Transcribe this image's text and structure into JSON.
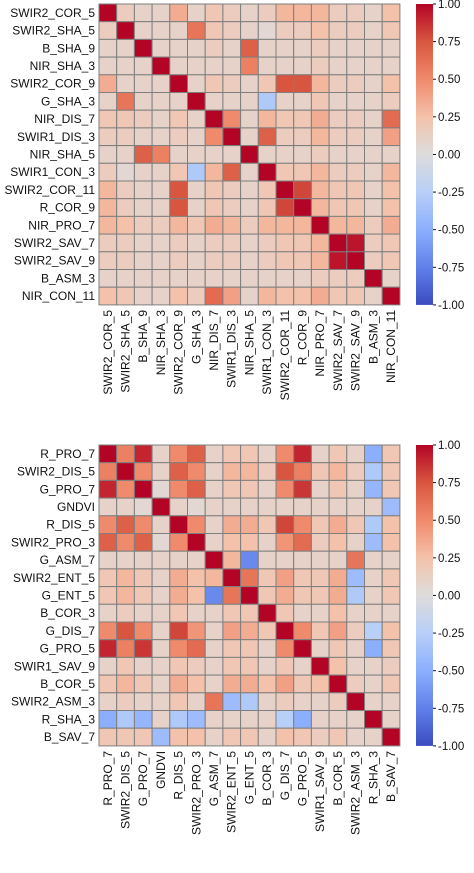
{
  "chart_data": [
    {
      "type": "heatmap",
      "title": "",
      "labels": [
        "SWIR2_COR_5",
        "SWIR2_SHA_5",
        "B_SHA_9",
        "NIR_SHA_3",
        "SWIR2_COR_9",
        "G_SHA_3",
        "NIR_DIS_7",
        "SWIR1_DIS_3",
        "NIR_SHA_5",
        "SWIR1_CON_3",
        "SWIR2_COR_11",
        "R_COR_9",
        "NIR_PRO_7",
        "SWIR2_SAV_7",
        "SWIR2_SAV_9",
        "B_ASM_3",
        "NIR_CON_11"
      ],
      "colorbar": {
        "min": -1.0,
        "max": 1.0,
        "ticks": [
          "1.00",
          "0.75",
          "0.50",
          "0.25",
          "0.00",
          "-0.25",
          "-0.50",
          "-0.75",
          "-1.00"
        ]
      },
      "matrix": [
        [
          1,
          0.15,
          0.1,
          0.1,
          0.35,
          0.1,
          0.2,
          0.15,
          0.1,
          0.15,
          0.3,
          0.3,
          0.3,
          0.15,
          0.15,
          0.1,
          0.25
        ],
        [
          0.15,
          1,
          0.1,
          0.1,
          0.1,
          0.6,
          0.2,
          0.15,
          0.1,
          0.05,
          0.15,
          0.15,
          0.25,
          0.15,
          0.15,
          0.1,
          0.2
        ],
        [
          0.1,
          0.1,
          1,
          0.1,
          0.1,
          0.1,
          0.15,
          0.1,
          0.7,
          0.1,
          0.1,
          0.1,
          0.15,
          0.1,
          0.1,
          0.1,
          0.1
        ],
        [
          0.1,
          0.1,
          0.1,
          1,
          0.1,
          0.1,
          0.1,
          0.1,
          0.55,
          0.1,
          0.1,
          0.1,
          0.15,
          0.1,
          0.1,
          0.1,
          0.1
        ],
        [
          0.35,
          0.1,
          0.1,
          0.1,
          1,
          0.1,
          0.2,
          0.15,
          0.1,
          0.2,
          0.75,
          0.75,
          0.3,
          0.15,
          0.15,
          0.1,
          0.25
        ],
        [
          0.1,
          0.6,
          0.1,
          0.1,
          0.1,
          1,
          0.1,
          0.1,
          0.1,
          -0.3,
          0.1,
          0.1,
          0.2,
          0.1,
          0.1,
          0.1,
          0.15
        ],
        [
          0.2,
          0.2,
          0.15,
          0.1,
          0.2,
          0.1,
          1,
          0.5,
          0.1,
          0.3,
          0.2,
          0.2,
          0.35,
          0.15,
          0.15,
          0.1,
          0.65
        ],
        [
          0.15,
          0.15,
          0.1,
          0.1,
          0.15,
          0.1,
          0.5,
          1,
          0.1,
          0.7,
          0.15,
          0.15,
          0.3,
          0.15,
          0.15,
          0.1,
          0.4
        ],
        [
          0.1,
          0.1,
          0.7,
          0.55,
          0.1,
          0.1,
          0.1,
          0.1,
          1,
          0.1,
          0.1,
          0.1,
          0.15,
          0.1,
          0.1,
          0.1,
          0.1
        ],
        [
          0.15,
          0.05,
          0.1,
          0.1,
          0.2,
          -0.3,
          0.3,
          0.7,
          0.1,
          1,
          0.2,
          0.2,
          0.3,
          0.15,
          0.15,
          0.1,
          0.3
        ],
        [
          0.3,
          0.15,
          0.1,
          0.1,
          0.75,
          0.1,
          0.2,
          0.15,
          0.1,
          0.2,
          1,
          0.8,
          0.3,
          0.2,
          0.2,
          0.1,
          0.25
        ],
        [
          0.3,
          0.15,
          0.1,
          0.1,
          0.75,
          0.1,
          0.2,
          0.15,
          0.1,
          0.2,
          0.8,
          1,
          0.3,
          0.2,
          0.2,
          0.1,
          0.25
        ],
        [
          0.3,
          0.25,
          0.15,
          0.15,
          0.3,
          0.2,
          0.35,
          0.3,
          0.15,
          0.3,
          0.3,
          0.3,
          1,
          0.3,
          0.3,
          0.15,
          0.35
        ],
        [
          0.15,
          0.15,
          0.1,
          0.1,
          0.15,
          0.1,
          0.15,
          0.15,
          0.1,
          0.15,
          0.2,
          0.2,
          0.3,
          1,
          0.95,
          0.15,
          0.2
        ],
        [
          0.15,
          0.15,
          0.1,
          0.1,
          0.15,
          0.1,
          0.15,
          0.15,
          0.1,
          0.15,
          0.2,
          0.2,
          0.3,
          0.95,
          1,
          0.15,
          0.2
        ],
        [
          0.1,
          0.1,
          0.1,
          0.1,
          0.1,
          0.1,
          0.1,
          0.1,
          0.1,
          0.1,
          0.1,
          0.1,
          0.15,
          0.15,
          0.15,
          1,
          0.1
        ],
        [
          0.25,
          0.2,
          0.1,
          0.1,
          0.25,
          0.15,
          0.65,
          0.4,
          0.1,
          0.3,
          0.25,
          0.25,
          0.35,
          0.2,
          0.2,
          0.1,
          1
        ]
      ]
    },
    {
      "type": "heatmap",
      "title": "",
      "labels": [
        "R_PRO_7",
        "SWIR2_DIS_5",
        "G_PRO_7",
        "GNDVI",
        "R_DIS_5",
        "SWIR2_PRO_3",
        "G_ASM_7",
        "SWIR2_ENT_5",
        "G_ENT_5",
        "B_COR_3",
        "G_DIS_7",
        "G_PRO_5",
        "SWIR1_SAV_9",
        "B_COR_5",
        "SWIR2_ASM_3",
        "R_SHA_3",
        "B_SAV_7"
      ],
      "colorbar": {
        "min": -1.0,
        "max": 1.0,
        "ticks": [
          "1.00",
          "0.75",
          "0.50",
          "0.25",
          "0.00",
          "-0.25",
          "-0.50",
          "-0.75",
          "-1.00"
        ]
      },
      "matrix": [
        [
          1,
          0.55,
          0.9,
          0.1,
          0.5,
          0.7,
          0.1,
          0.2,
          0.2,
          0.1,
          0.5,
          0.9,
          0.1,
          0.2,
          0.1,
          -0.5,
          0.2
        ],
        [
          0.55,
          1,
          0.5,
          0.1,
          0.7,
          0.5,
          0.1,
          0.3,
          0.3,
          0.15,
          0.75,
          0.55,
          0.2,
          0.3,
          0.15,
          -0.3,
          0.2
        ],
        [
          0.9,
          0.5,
          1,
          0.05,
          0.5,
          0.7,
          0.1,
          0.2,
          0.2,
          0.1,
          0.5,
          0.85,
          0.1,
          0.2,
          0.1,
          -0.45,
          0.2
        ],
        [
          0.1,
          0.1,
          0.05,
          1,
          0.1,
          0.05,
          0.1,
          0.1,
          0.1,
          0.1,
          0.1,
          0.1,
          0.1,
          0.1,
          0.1,
          0.1,
          -0.4
        ],
        [
          0.5,
          0.7,
          0.5,
          0.1,
          1,
          0.5,
          0.1,
          0.35,
          0.35,
          0.2,
          0.8,
          0.5,
          0.2,
          0.35,
          0.2,
          -0.3,
          0.25
        ],
        [
          0.7,
          0.5,
          0.7,
          0.05,
          0.5,
          1,
          0.1,
          0.25,
          0.25,
          0.1,
          0.45,
          0.65,
          0.15,
          0.25,
          0.1,
          -0.4,
          0.25
        ],
        [
          0.1,
          0.1,
          0.1,
          0.1,
          0.1,
          0.1,
          1,
          0.3,
          -0.7,
          0.1,
          0.1,
          0.1,
          0.1,
          0.1,
          0.6,
          0.1,
          0.1
        ],
        [
          0.2,
          0.3,
          0.2,
          0.1,
          0.35,
          0.25,
          0.3,
          1,
          0.6,
          0.2,
          0.4,
          0.2,
          0.2,
          0.35,
          -0.4,
          0.1,
          0.2
        ],
        [
          0.2,
          0.3,
          0.2,
          0.1,
          0.35,
          0.25,
          -0.7,
          0.6,
          1,
          0.2,
          0.35,
          0.2,
          0.2,
          0.35,
          -0.3,
          0.1,
          0.2
        ],
        [
          0.1,
          0.15,
          0.1,
          0.1,
          0.2,
          0.1,
          0.1,
          0.2,
          0.2,
          1,
          0.2,
          0.1,
          0.1,
          0.25,
          0.1,
          0.1,
          0.1
        ],
        [
          0.5,
          0.75,
          0.5,
          0.1,
          0.8,
          0.45,
          0.1,
          0.4,
          0.35,
          0.2,
          1,
          0.5,
          0.2,
          0.4,
          0.15,
          -0.25,
          0.25
        ],
        [
          0.9,
          0.55,
          0.85,
          0.1,
          0.5,
          0.65,
          0.1,
          0.2,
          0.2,
          0.1,
          0.5,
          1,
          0.1,
          0.2,
          0.1,
          -0.5,
          0.2
        ],
        [
          0.1,
          0.2,
          0.1,
          0.1,
          0.2,
          0.15,
          0.1,
          0.2,
          0.2,
          0.1,
          0.2,
          0.1,
          1,
          0.25,
          0.1,
          0.1,
          0.15
        ],
        [
          0.2,
          0.3,
          0.2,
          0.1,
          0.35,
          0.25,
          0.1,
          0.35,
          0.35,
          0.25,
          0.4,
          0.2,
          0.25,
          1,
          0.15,
          0.1,
          0.2
        ],
        [
          0.1,
          0.15,
          0.1,
          0.1,
          0.2,
          0.1,
          0.6,
          -0.4,
          -0.3,
          0.1,
          0.15,
          0.1,
          0.1,
          0.15,
          1,
          0.1,
          0.1
        ],
        [
          -0.5,
          -0.3,
          -0.45,
          0.1,
          -0.3,
          -0.4,
          0.1,
          0.1,
          0.1,
          0.1,
          -0.25,
          -0.5,
          0.1,
          0.1,
          0.1,
          1,
          0.1
        ],
        [
          0.2,
          0.2,
          0.2,
          -0.4,
          0.25,
          0.25,
          0.1,
          0.2,
          0.2,
          0.1,
          0.25,
          0.2,
          0.15,
          0.2,
          0.1,
          0.1,
          1
        ]
      ]
    }
  ]
}
